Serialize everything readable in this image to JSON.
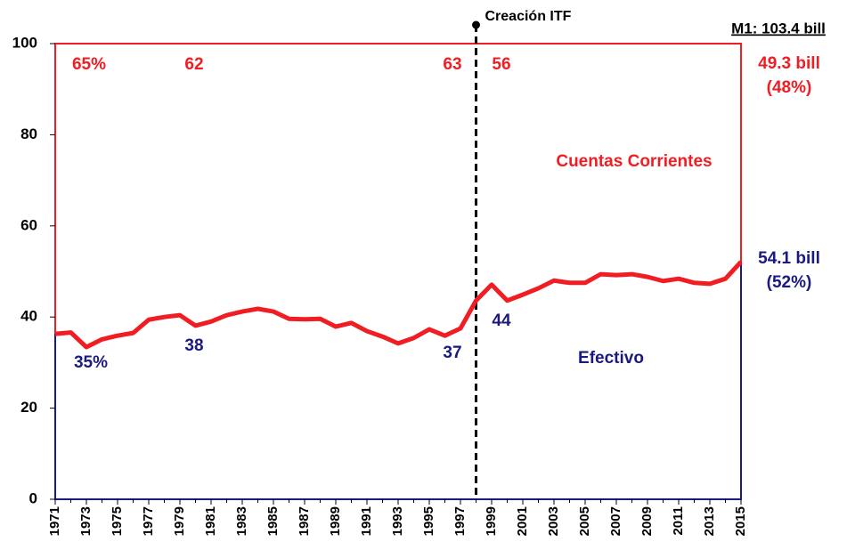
{
  "chart_data": {
    "type": "line",
    "x": [
      1971,
      1972,
      1973,
      1974,
      1975,
      1976,
      1977,
      1978,
      1979,
      1980,
      1981,
      1982,
      1983,
      1984,
      1985,
      1986,
      1987,
      1988,
      1989,
      1990,
      1991,
      1992,
      1993,
      1994,
      1995,
      1996,
      1997,
      1998,
      1999,
      2000,
      2001,
      2002,
      2003,
      2004,
      2005,
      2006,
      2007,
      2008,
      2009,
      2010,
      2011,
      2012,
      2013,
      2014,
      2015
    ],
    "values": [
      36.3,
      36.6,
      33.4,
      35.1,
      35.9,
      36.5,
      39.4,
      40.0,
      40.4,
      38.1,
      39.0,
      40.4,
      41.2,
      41.8,
      41.2,
      39.6,
      39.5,
      39.6,
      37.9,
      38.7,
      36.9,
      35.7,
      34.2,
      35.4,
      37.3,
      35.9,
      37.5,
      43.6,
      47.1,
      43.6,
      44.9,
      46.3,
      48.0,
      47.5,
      47.5,
      49.4,
      49.2,
      49.4,
      48.8,
      47.9,
      48.4,
      47.5,
      47.3,
      48.4,
      52.1
    ],
    "color": "#f01e23",
    "lower_color": "#1a1a80",
    "xlim": [
      1971,
      2015
    ],
    "xticks": [
      1971,
      1973,
      1975,
      1977,
      1979,
      1981,
      1983,
      1985,
      1987,
      1989,
      1991,
      1993,
      1995,
      1997,
      1999,
      2001,
      2003,
      2005,
      2007,
      2009,
      2011,
      2013,
      2015
    ],
    "ylim": [
      0,
      100
    ],
    "yticks": [
      0,
      20,
      40,
      60,
      80,
      100
    ],
    "vline": {
      "x": 1998,
      "label": "Creación ITF"
    },
    "total_label": "M1: 103.4 bill",
    "annotations": [
      {
        "text": "65%",
        "color": "upper"
      },
      {
        "text": "62",
        "color": "upper"
      },
      {
        "text": "63",
        "color": "upper"
      },
      {
        "text": "56",
        "color": "upper"
      },
      {
        "text": "35%",
        "color": "lower"
      },
      {
        "text": "38",
        "color": "lower"
      },
      {
        "text": "37",
        "color": "lower"
      },
      {
        "text": "44",
        "color": "lower"
      },
      {
        "text": "Cuentas Corrientes",
        "color": "upper"
      },
      {
        "text": "Efectivo",
        "color": "lower"
      },
      {
        "text": "49.3 bill",
        "color": "upper"
      },
      {
        "text": "(48%)",
        "color": "upper"
      },
      {
        "text": "54.1 bill",
        "color": "lower"
      },
      {
        "text": "(52%)",
        "color": "lower"
      }
    ]
  }
}
